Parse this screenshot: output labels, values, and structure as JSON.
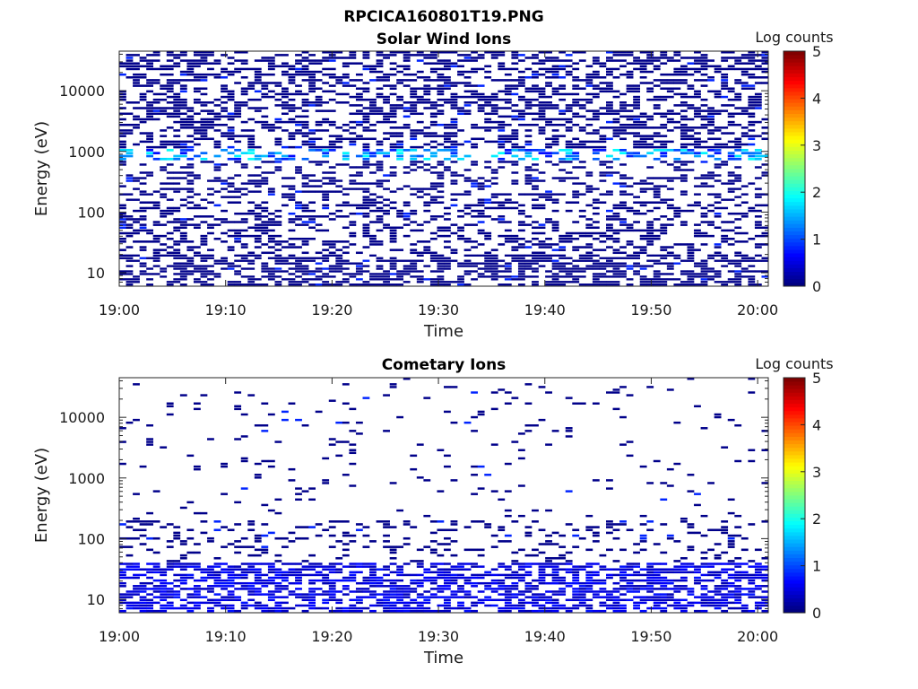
{
  "figure": {
    "title": "RPCICA160801T19.PNG"
  },
  "colorbar": {
    "label": "Log counts",
    "range": [
      0,
      5
    ],
    "ticks": [
      "0",
      "1",
      "2",
      "3",
      "4",
      "5"
    ],
    "colormap": "jet"
  },
  "chart_data": [
    {
      "type": "heatmap",
      "title": "Solar Wind Ions",
      "xlabel": "Time",
      "ylabel": "Energy (eV)",
      "x_ticks": [
        "19:00",
        "19:10",
        "19:20",
        "19:30",
        "19:40",
        "19:50",
        "20:00"
      ],
      "y_ticks": [
        "10",
        "100",
        "1000",
        "10000"
      ],
      "y_scale": "log",
      "ylim_eV": [
        6,
        45000
      ],
      "xlim": [
        "19:00",
        "20:01"
      ],
      "cell_values": "log counts, mostly 0-1 (dark blue); sparse columns ~1.5-2 near 1000 eV",
      "bands": [
        {
          "energy_eV": [
            6,
            20
          ],
          "log_counts": 0.0,
          "coverage": 0.55
        },
        {
          "energy_eV": [
            20,
            150
          ],
          "log_counts": 0.0,
          "coverage": 0.35
        },
        {
          "energy_eV": [
            150,
            700
          ],
          "log_counts": 0.0,
          "coverage": 0.3
        },
        {
          "energy_eV": [
            700,
            1100
          ],
          "log_counts": 1.6,
          "coverage": 0.45
        },
        {
          "energy_eV": [
            1100,
            45000
          ],
          "log_counts": 0.0,
          "coverage": 0.45
        }
      ]
    },
    {
      "type": "heatmap",
      "title": "Cometary Ions",
      "xlabel": "Time",
      "ylabel": "Energy (eV)",
      "x_ticks": [
        "19:00",
        "19:10",
        "19:20",
        "19:30",
        "19:40",
        "19:50",
        "20:00"
      ],
      "y_ticks": [
        "10",
        "100",
        "1000",
        "10000"
      ],
      "y_scale": "log",
      "ylim_eV": [
        6,
        45000
      ],
      "xlim": [
        "19:00",
        "20:01"
      ],
      "cell_values": "log counts 0-1.5, dense below 40 eV, sparse above",
      "bands": [
        {
          "energy_eV": [
            6,
            40
          ],
          "log_counts": 0.6,
          "coverage": 0.6
        },
        {
          "energy_eV": [
            40,
            200
          ],
          "log_counts": 0.0,
          "coverage": 0.2
        },
        {
          "energy_eV": [
            200,
            45000
          ],
          "log_counts": 0.0,
          "coverage": 0.04
        }
      ]
    }
  ]
}
